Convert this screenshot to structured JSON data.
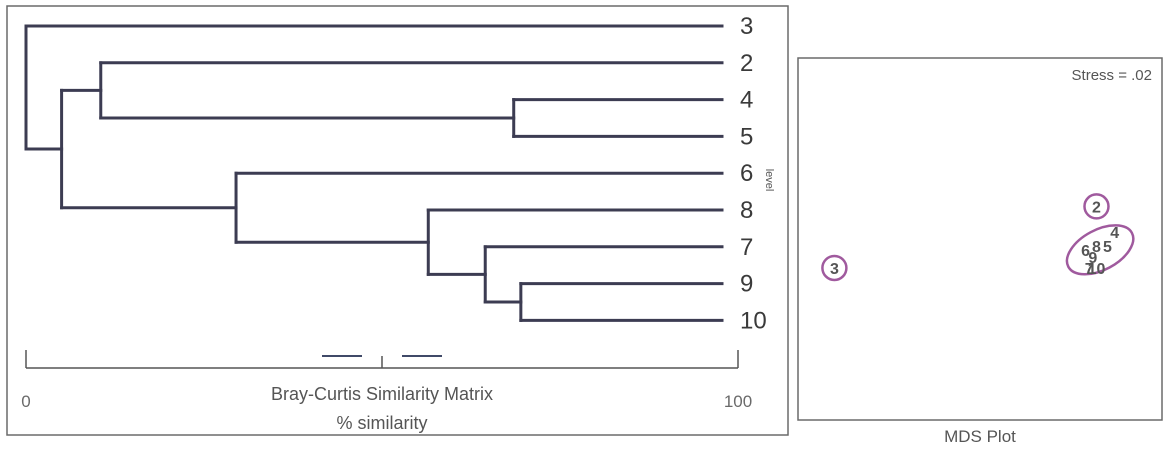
{
  "chart_data": [
    {
      "type": "dendrogram",
      "title": "Bray-Curtis Similarity Matrix",
      "xlabel": "% similarity",
      "xlim": [
        0,
        100
      ],
      "ticks": [
        "0",
        "100"
      ],
      "level_label": "level",
      "leaves": [
        "3",
        "2",
        "4",
        "5",
        "6",
        "8",
        "7",
        "9",
        "10"
      ],
      "merges": [
        {
          "left": "9",
          "right": "10",
          "similarity": 69.5
        },
        {
          "left": "7",
          "right": "9+10",
          "similarity": 64.5
        },
        {
          "left": "8",
          "right": "7+9+10",
          "similarity": 56.5
        },
        {
          "left": "6",
          "right": "8+7+9+10",
          "similarity": 29.5
        },
        {
          "left": "4",
          "right": "5",
          "similarity": 68.5
        },
        {
          "left": "2",
          "right": "4+5",
          "similarity": 10.5
        },
        {
          "left": "2+4+5",
          "right": "6+8+7+9+10",
          "similarity": 5.0
        },
        {
          "left": "3",
          "right": "all others",
          "similarity": 0.0
        }
      ]
    },
    {
      "type": "scatter",
      "title": "MDS Plot",
      "annotation": "Stress = .02",
      "points": [
        {
          "label": "3",
          "x": 0.1,
          "y": 0.42
        },
        {
          "label": "2",
          "x": 0.82,
          "y": 0.59
        },
        {
          "label": "4",
          "x": 0.87,
          "y": 0.52
        },
        {
          "label": "5",
          "x": 0.85,
          "y": 0.48
        },
        {
          "label": "8",
          "x": 0.82,
          "y": 0.48
        },
        {
          "label": "6",
          "x": 0.79,
          "y": 0.47
        },
        {
          "label": "9",
          "x": 0.81,
          "y": 0.45
        },
        {
          "label": "7",
          "x": 0.8,
          "y": 0.42
        },
        {
          "label": "10",
          "x": 0.82,
          "y": 0.42
        }
      ],
      "groups": [
        {
          "members": [
            "3"
          ],
          "shape": "circle"
        },
        {
          "members": [
            "2"
          ],
          "shape": "circle"
        },
        {
          "members": [
            "4",
            "5",
            "6",
            "7",
            "8",
            "9",
            "10"
          ],
          "shape": "ellipse"
        }
      ],
      "ring_color": "#a05a9e"
    }
  ]
}
